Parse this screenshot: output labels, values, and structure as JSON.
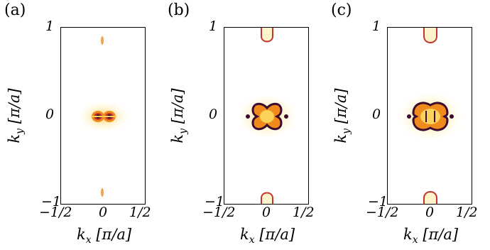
{
  "figure": {
    "panels": [
      {
        "label": "(a)",
        "x_ticks": [
          "−1/2",
          "0",
          "1/2"
        ],
        "y_ticks": [
          "1",
          "0",
          "−1"
        ],
        "xlabel": {
          "sym": "k",
          "sub": "x",
          "unit": "[π/a]"
        },
        "ylabel": {
          "sym": "k",
          "sub": "y",
          "unit": "[π/a]"
        }
      },
      {
        "label": "(b)",
        "x_ticks": [
          "−1/2",
          "0",
          "1/2"
        ],
        "y_ticks": [
          "1",
          "0",
          "−1"
        ],
        "xlabel": {
          "sym": "k",
          "sub": "x",
          "unit": "[π/a]"
        },
        "ylabel": {
          "sym": "k",
          "sub": "y",
          "unit": "[π/a]"
        }
      },
      {
        "label": "(c)",
        "x_ticks": [
          "−1/2",
          "0",
          "1/2"
        ],
        "y_ticks": [
          "1",
          "0",
          "−1"
        ],
        "xlabel": {
          "sym": "k",
          "sub": "x",
          "unit": "[π/a]"
        },
        "ylabel": {
          "sym": "k",
          "sub": "y",
          "unit": "[π/a]"
        }
      }
    ],
    "colors": {
      "dark": "#3a0b2e",
      "mid": "#c0362c",
      "orange": "#f08a1c",
      "yellow": "#fbd35a",
      "pale": "#fff3cc"
    }
  }
}
